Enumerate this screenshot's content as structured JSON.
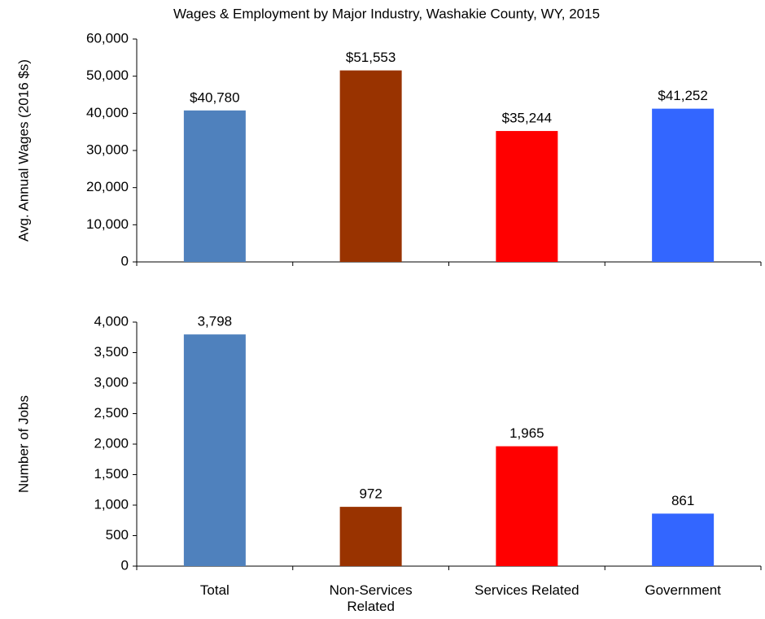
{
  "chart_data": [
    {
      "type": "bar",
      "title": "Wages & Employment by Major Industry, Washakie County, WY, 2015",
      "y_label": "Avg. Annual Wages (2016 $s)",
      "categories": [
        null,
        null,
        null,
        null
      ],
      "values": [
        40780,
        51553,
        35244,
        41252
      ],
      "value_labels": [
        "$40,780",
        "$51,553",
        "$35,244",
        "$41,252"
      ],
      "colors": [
        "#4f81bd",
        "#993300",
        "#ff0000",
        "#3366ff"
      ],
      "ylim": [
        0,
        60000
      ],
      "yticks": [
        0,
        {
          "value": 10000,
          "label": "10,000"
        },
        {
          "value": 20000,
          "label": "20,000"
        },
        {
          "value": 30000,
          "label": "30,000"
        },
        {
          "value": 40000,
          "label": "40,000"
        },
        {
          "value": 50000,
          "label": "50,000"
        },
        {
          "value": 60000,
          "label": "60,000"
        }
      ],
      "grid": false
    },
    {
      "type": "bar",
      "y_label": "Number of Jobs",
      "categories": [
        "Total",
        "Non-Services Related",
        "Services Related",
        "Government"
      ],
      "values": [
        3798,
        972,
        1965,
        861
      ],
      "value_labels": [
        "3,798",
        "972",
        "1,965",
        "861"
      ],
      "colors": [
        "#4f81bd",
        "#993300",
        "#ff0000",
        "#3366ff"
      ],
      "ylim": [
        0,
        4000
      ],
      "yticks": [
        0,
        500,
        {
          "value": 1000,
          "label": "1,000"
        },
        {
          "value": 1500,
          "label": "1,500"
        },
        {
          "value": 2000,
          "label": "2,000"
        },
        {
          "value": 2500,
          "label": "2,500"
        },
        {
          "value": 3000,
          "label": "3,000"
        },
        {
          "value": 3500,
          "label": "3,500"
        },
        {
          "value": 4000,
          "label": "4,000"
        }
      ],
      "grid": false
    }
  ]
}
